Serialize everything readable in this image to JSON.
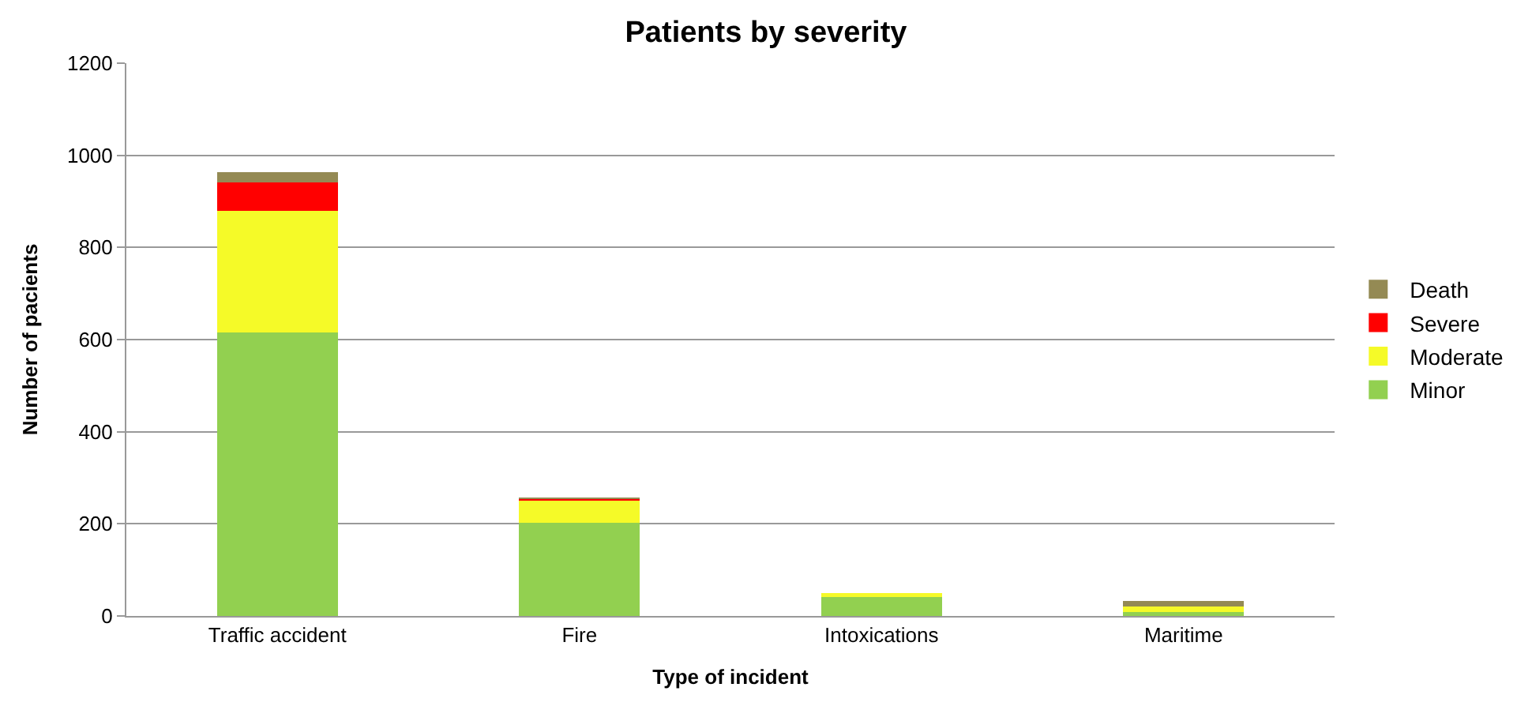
{
  "chart_data": {
    "type": "bar",
    "title": "Patients by severity",
    "xlabel": "Type of incident",
    "ylabel": "Number of pacients",
    "categories": [
      "Traffic accident",
      "Fire",
      "Intoxications",
      "Maritime"
    ],
    "stacked": true,
    "ylim": [
      0,
      1200
    ],
    "yticks": [
      0,
      200,
      400,
      600,
      800,
      1000,
      1200
    ],
    "grid": "y",
    "legend": "right",
    "series": [
      {
        "name": "Minor",
        "color": "#92d050",
        "values": [
          615,
          203,
          43,
          8
        ]
      },
      {
        "name": "Moderate",
        "color": "#f5fa28",
        "values": [
          264,
          50,
          6,
          12
        ]
      },
      {
        "name": "Severe",
        "color": "#ff0000",
        "values": [
          62,
          3,
          0,
          0
        ]
      },
      {
        "name": "Death",
        "color": "#948a54",
        "values": [
          23,
          1,
          0,
          12
        ]
      }
    ]
  }
}
